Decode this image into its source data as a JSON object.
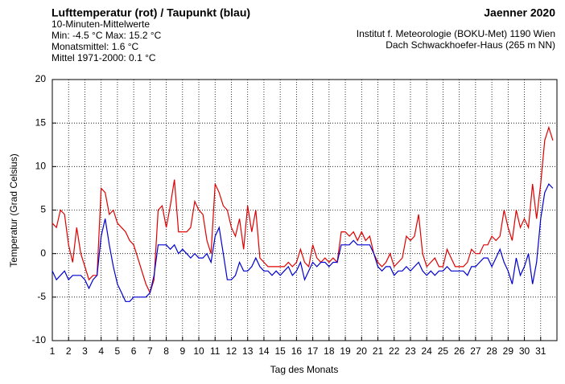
{
  "chart_data": {
    "type": "line",
    "title": "Lufttemperatur (rot) / Taupunkt (blau)",
    "subtitle": "10-Minuten-Mittelwerte",
    "stats": [
      "Min:  -4.5 °C   Max:  15.2 °C",
      "Monatsmittel:   1.6 °C",
      "Mittel 1971-2000:   0.1 °C"
    ],
    "month": "Jaenner 2020",
    "source": [
      "Institut f. Meteorologie (BOKU-Met) 1190 Wien",
      "Dach Schwackhoefer-Haus (265 m NN)"
    ],
    "xlabel": "Tag des Monats",
    "ylabel": "Temperatur (Grad Celsius)",
    "xlim": [
      1,
      32
    ],
    "xticks": [
      1,
      2,
      3,
      4,
      5,
      6,
      7,
      8,
      9,
      10,
      11,
      12,
      13,
      14,
      15,
      16,
      17,
      18,
      19,
      20,
      21,
      22,
      23,
      24,
      25,
      26,
      27,
      28,
      29,
      30,
      31
    ],
    "ylim": [
      -10,
      20
    ],
    "yticks": [
      -10,
      -5,
      0,
      5,
      10,
      15,
      20
    ],
    "grid": true,
    "x": [
      1,
      1.25,
      1.5,
      1.75,
      2,
      2.25,
      2.5,
      2.75,
      3,
      3.25,
      3.5,
      3.75,
      4,
      4.25,
      4.5,
      4.75,
      5,
      5.25,
      5.5,
      5.75,
      6,
      6.25,
      6.5,
      6.75,
      7,
      7.25,
      7.5,
      7.75,
      8,
      8.25,
      8.5,
      8.75,
      9,
      9.25,
      9.5,
      9.75,
      10,
      10.25,
      10.5,
      10.75,
      11,
      11.25,
      11.5,
      11.75,
      12,
      12.25,
      12.5,
      12.75,
      13,
      13.25,
      13.5,
      13.75,
      14,
      14.25,
      14.5,
      14.75,
      15,
      15.25,
      15.5,
      15.75,
      16,
      16.25,
      16.5,
      16.75,
      17,
      17.25,
      17.5,
      17.75,
      18,
      18.25,
      18.5,
      18.75,
      19,
      19.25,
      19.5,
      19.75,
      20,
      20.25,
      20.5,
      20.75,
      21,
      21.25,
      21.5,
      21.75,
      22,
      22.25,
      22.5,
      22.75,
      23,
      23.25,
      23.5,
      23.75,
      24,
      24.25,
      24.5,
      24.75,
      25,
      25.25,
      25.5,
      25.75,
      26,
      26.25,
      26.5,
      26.75,
      27,
      27.25,
      27.5,
      27.75,
      28,
      28.25,
      28.5,
      28.75,
      29,
      29.25,
      29.5,
      29.75,
      30,
      30.25,
      30.5,
      30.75,
      31,
      31.25,
      31.5,
      31.75
    ],
    "series": [
      {
        "name": "Lufttemperatur",
        "color": "#e00000",
        "values": [
          3.5,
          3,
          5,
          4.5,
          1,
          -1,
          3,
          0,
          -1.5,
          -3,
          -2.5,
          -2.5,
          7.5,
          7,
          4.5,
          5,
          3.5,
          3,
          2.5,
          1.5,
          1,
          -0.5,
          -2,
          -3.5,
          -4.5,
          -3,
          5,
          5.5,
          3,
          5.5,
          8.5,
          2.5,
          2.5,
          2.5,
          3,
          6,
          5,
          4.5,
          1.5,
          0,
          8,
          7,
          5.5,
          5,
          3,
          2,
          4,
          0.5,
          5.5,
          2.5,
          5,
          -0.5,
          -1,
          -1.5,
          -1.5,
          -1.5,
          -1.5,
          -1.5,
          -1,
          -1.5,
          -1,
          0.5,
          -1,
          -1.5,
          1,
          -0.5,
          -1,
          -0.5,
          -1,
          -0.5,
          -1,
          2.5,
          2.5,
          2,
          2.5,
          1.5,
          2.5,
          1.5,
          2,
          0,
          -1,
          -1.5,
          -1,
          0,
          -1.5,
          -1,
          -0.5,
          2,
          1.5,
          2,
          4.5,
          0,
          -1.5,
          -1,
          -0.5,
          -1.5,
          -1.5,
          0.5,
          -0.5,
          -1.5,
          -1.5,
          -1.5,
          -1,
          0.5,
          0,
          0,
          1,
          1,
          2,
          1.5,
          2,
          5,
          3,
          1.5,
          5,
          3,
          4,
          3,
          8,
          4,
          8,
          13,
          14.5,
          13
        ]
      },
      {
        "name": "Taupunkt",
        "color": "#0000d0",
        "values": [
          -2,
          -3,
          -2.5,
          -2,
          -3,
          -2.5,
          -2.5,
          -2.5,
          -3,
          -4,
          -3,
          -2.5,
          2,
          4,
          1,
          -1.5,
          -3.5,
          -4.5,
          -5.5,
          -5.5,
          -5,
          -5,
          -5,
          -5,
          -4.5,
          -2.5,
          1,
          1,
          1,
          0.5,
          1,
          0,
          0.5,
          0,
          -0.5,
          0,
          -0.5,
          -0.5,
          0,
          -1,
          2,
          3,
          0,
          -3,
          -3,
          -2.5,
          -1,
          -2,
          -2,
          -1.5,
          -0.5,
          -1.5,
          -2,
          -2,
          -2.5,
          -2,
          -2.5,
          -2,
          -1.5,
          -2.5,
          -2,
          -1,
          -3,
          -2,
          -1,
          -1.5,
          -1,
          -1,
          -1.5,
          -1,
          -1,
          1,
          1,
          1,
          1.5,
          1,
          1,
          1,
          1,
          0,
          -1.5,
          -2,
          -1.5,
          -1.5,
          -2.5,
          -2,
          -2,
          -1.5,
          -2,
          -1.5,
          -1,
          -2,
          -2.5,
          -2,
          -2.5,
          -2,
          -2,
          -1.5,
          -2,
          -2,
          -2,
          -2,
          -2.5,
          -1.5,
          -1.5,
          -1,
          -0.5,
          -0.5,
          -1.5,
          -0.5,
          0.5,
          -1,
          -2,
          -3.5,
          -0.5,
          -2.5,
          -1.5,
          0,
          -3.5,
          -1,
          4,
          7,
          8,
          7.5
        ]
      }
    ]
  }
}
